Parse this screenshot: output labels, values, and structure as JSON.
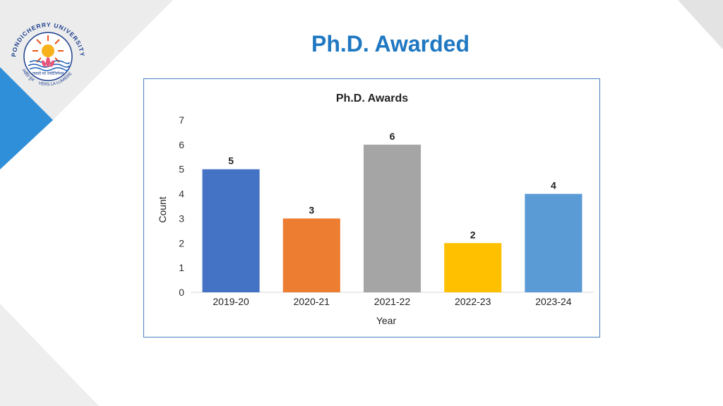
{
  "slide": {
    "title": "Ph.D. Awarded"
  },
  "logo": {
    "arc_text": "PONDICHERRY UNIVERSITY",
    "motto_left": "ज्योति पुंज",
    "motto_hindi": "तमसो मा ज्योतिर्गमय",
    "motto_right": "VERS LA LUMIÈRE"
  },
  "colors": {
    "title": "#1f78c1",
    "frame_border": "#4a7fc0",
    "deco_blue": "#2f8fd8",
    "deco_grey": "#d9d9d9"
  },
  "chart_data": {
    "type": "bar",
    "title": "Ph.D. Awards",
    "xlabel": "Year",
    "ylabel": "Count",
    "categories": [
      "2019-20",
      "2020-21",
      "2021-22",
      "2022-23",
      "2023-24"
    ],
    "values": [
      5,
      3,
      6,
      2,
      4
    ],
    "data_labels": [
      "5",
      "3",
      "6",
      "2",
      "4"
    ],
    "bar_colors": [
      "#4472c4",
      "#ed7d31",
      "#a5a5a5",
      "#ffc000",
      "#5b9bd5"
    ],
    "ylim": [
      0,
      7
    ],
    "yticks": [
      0,
      1,
      2,
      3,
      4,
      5,
      6,
      7
    ],
    "grid": false,
    "legend": "none"
  }
}
